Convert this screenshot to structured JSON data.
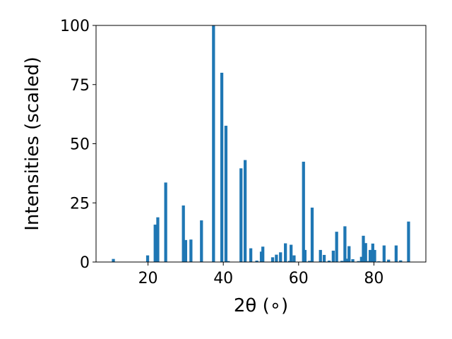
{
  "chart_data": {
    "type": "bar",
    "title": "",
    "xlabel": "2θ (∘)",
    "ylabel": "Intensities (scaled)",
    "xlim": [
      6.2,
      93.8
    ],
    "ylim": [
      0,
      100
    ],
    "xticks": [
      20,
      40,
      60,
      80
    ],
    "yticks": [
      0,
      25,
      50,
      75,
      100
    ],
    "grid": false,
    "legend": "none",
    "bar_color": "#1f77b4",
    "bar_width": 0.8,
    "series": [
      {
        "x": [
          10.8,
          19.9,
          21.9,
          22.6,
          24.7,
          29.4,
          30.0,
          31.4,
          34.2,
          37.4,
          39.6,
          40.7,
          41.3,
          44.7,
          45.8,
          47.3,
          48.9,
          50.1,
          50.5,
          53.1,
          54.1,
          55.2,
          56.5,
          57.6,
          58.0,
          58.8,
          61.3,
          61.7,
          62.9,
          63.6,
          65.8,
          66.8,
          68.1,
          69.2,
          70.1,
          71.5,
          72.3,
          72.8,
          73.4,
          74.4,
          75.9,
          76.7,
          77.2,
          77.8,
          78.4,
          79.0,
          79.7,
          80.2,
          81.3,
          82.7,
          83.9,
          85.9,
          87.1,
          89.2
        ],
        "values": [
          1.3,
          2.8,
          15.8,
          18.9,
          33.6,
          23.9,
          9.3,
          9.5,
          17.6,
          100.0,
          80.0,
          57.6,
          0.4,
          39.6,
          43.1,
          5.8,
          0.6,
          4.4,
          6.5,
          2.0,
          3.1,
          4.1,
          7.9,
          0.5,
          7.3,
          2.8,
          42.4,
          5.1,
          0.5,
          23.0,
          5.1,
          3.0,
          0.6,
          4.8,
          12.8,
          0.5,
          15.1,
          1.4,
          6.7,
          1.2,
          0.4,
          2.2,
          11.1,
          8.0,
          0.4,
          5.1,
          7.8,
          5.1,
          0.3,
          7.0,
          1.0,
          7.0,
          0.7,
          17.1
        ]
      }
    ]
  }
}
